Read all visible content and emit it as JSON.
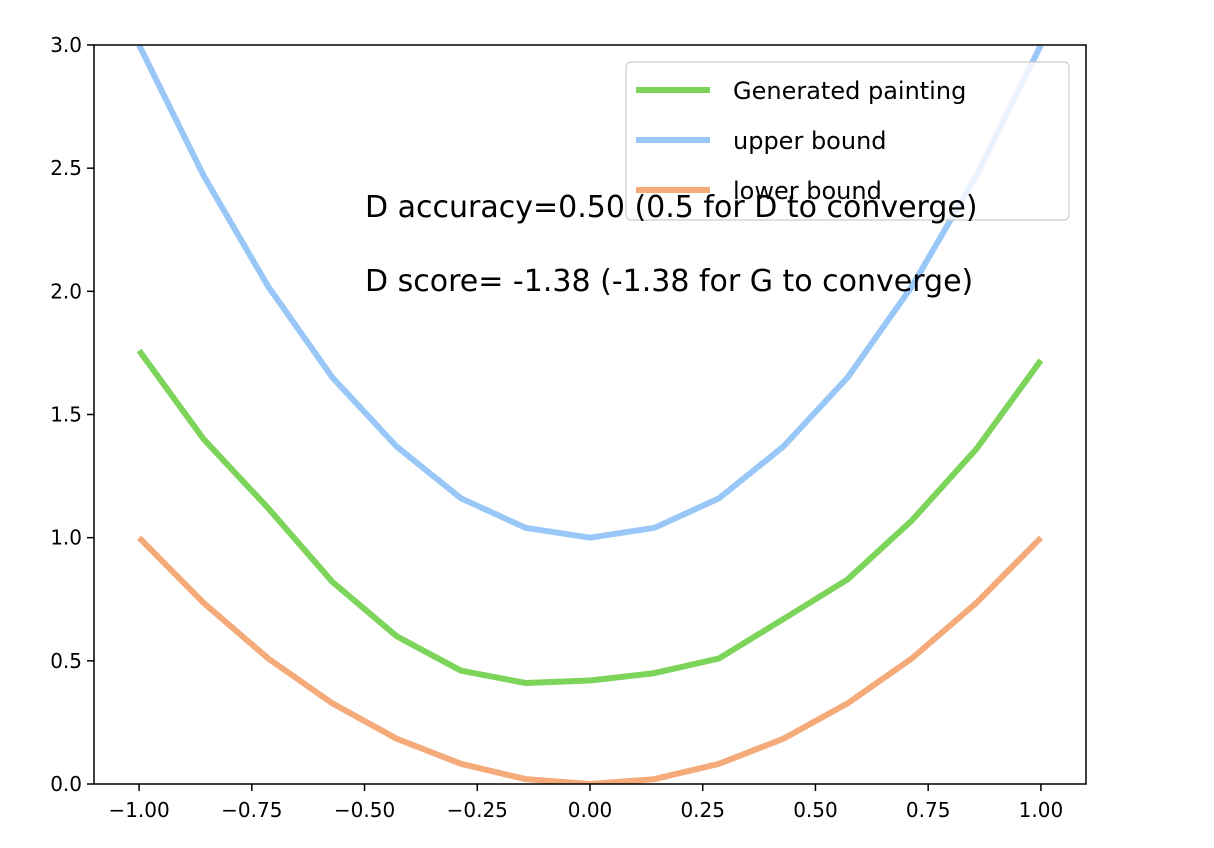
{
  "chart_data": {
    "type": "line",
    "title": "",
    "xlabel": "",
    "ylabel": "",
    "xlim": [
      -1.1,
      1.1
    ],
    "ylim": [
      0.0,
      3.0
    ],
    "grid": false,
    "legend_position": "top-right",
    "x": [
      -1.0,
      -0.857,
      -0.714,
      -0.571,
      -0.429,
      -0.286,
      -0.143,
      0.0,
      0.143,
      0.286,
      0.429,
      0.571,
      0.714,
      0.857,
      1.0
    ],
    "x_ticks": [
      -1.0,
      -0.75,
      -0.5,
      -0.25,
      0.0,
      0.25,
      0.5,
      0.75,
      1.0
    ],
    "x_tick_labels": [
      "−1.00",
      "−0.75",
      "−0.50",
      "−0.25",
      "0.00",
      "0.25",
      "0.50",
      "0.75",
      "1.00"
    ],
    "y_ticks": [
      0.0,
      0.5,
      1.0,
      1.5,
      2.0,
      2.5,
      3.0
    ],
    "y_tick_labels": [
      "0.0",
      "0.5",
      "1.0",
      "1.5",
      "2.0",
      "2.5",
      "3.0"
    ],
    "series": [
      {
        "name": "Generated painting",
        "color": "#7dd45a",
        "values": [
          1.76,
          1.4,
          1.12,
          0.82,
          0.6,
          0.46,
          0.41,
          0.42,
          0.45,
          0.51,
          0.67,
          0.83,
          1.07,
          1.36,
          1.72
        ]
      },
      {
        "name": "upper bound",
        "color": "#99c8f8",
        "values": [
          3.0,
          2.47,
          2.02,
          1.65,
          1.37,
          1.16,
          1.04,
          1.0,
          1.04,
          1.16,
          1.37,
          1.65,
          2.02,
          2.47,
          3.0
        ]
      },
      {
        "name": "lower bound",
        "color": "#f5aa79",
        "values": [
          1.0,
          0.735,
          0.51,
          0.327,
          0.184,
          0.082,
          0.02,
          0.0,
          0.02,
          0.082,
          0.184,
          0.327,
          0.51,
          0.735,
          1.0
        ]
      }
    ],
    "annotations": [
      {
        "text": "D accuracy=0.50 (0.5 for D to converge)"
      },
      {
        "text": "D score= -1.38 (-1.38 for G to converge)"
      }
    ]
  }
}
